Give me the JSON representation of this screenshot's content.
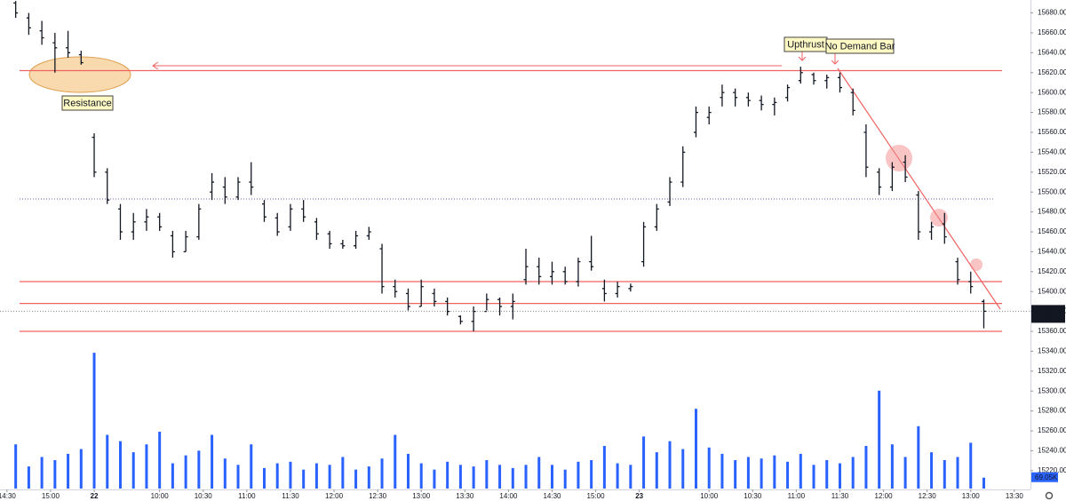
{
  "chart_data": {
    "type": "ohlc",
    "x": [
      2,
      5,
      8,
      11,
      14,
      17,
      20,
      23,
      26,
      29,
      32,
      35,
      38,
      41,
      44,
      47,
      50,
      53,
      56,
      59,
      62,
      65,
      68,
      71,
      74,
      77,
      80,
      83,
      86,
      89,
      92,
      95,
      98,
      101,
      104,
      107,
      110,
      113,
      116,
      119,
      122,
      125,
      128,
      131,
      134,
      137,
      140,
      143,
      146,
      149,
      152,
      155,
      158,
      161,
      164,
      167,
      170,
      173,
      176,
      179,
      182,
      185,
      188,
      191,
      194,
      197,
      200,
      203,
      206,
      209,
      212,
      215,
      218,
      221,
      224
    ],
    "open": [
      15690,
      15675,
      15662,
      15650,
      15645,
      15638,
      15555,
      15520,
      15483,
      15460,
      15470,
      15475,
      15456,
      15440,
      15455,
      15500,
      15505,
      15495,
      15510,
      15488,
      15474,
      15465,
      15483,
      15470,
      15458,
      15448,
      15446,
      15456,
      15443,
      15405,
      15398,
      15385,
      15398,
      15390,
      15375,
      15370,
      15380,
      15392,
      15385,
      15412,
      15425,
      15415,
      15420,
      15410,
      15430,
      15403,
      15398,
      15403,
      15430,
      15465,
      15490,
      15510,
      15560,
      15575,
      15595,
      15600,
      15595,
      15592,
      15588,
      15595,
      15612,
      15618,
      15612,
      15615,
      15600,
      15560,
      15520,
      15505,
      15530,
      15497,
      15460,
      15468,
      15430,
      15410,
      15390
    ],
    "high": [
      15692,
      15680,
      15672,
      15660,
      15662,
      15642,
      15559,
      15524,
      15488,
      15479,
      15483,
      15479,
      15461,
      15461,
      15488,
      15519,
      15515,
      15515,
      15530,
      15492,
      15479,
      15488,
      15492,
      15474,
      15461,
      15452,
      15461,
      15465,
      15448,
      15412,
      15403,
      15412,
      15403,
      15394,
      15376,
      15385,
      15398,
      15394,
      15398,
      15443,
      15434,
      15430,
      15425,
      15434,
      15456,
      15412,
      15410,
      15408,
      15470,
      15488,
      15515,
      15546,
      15586,
      15586,
      15608,
      15604,
      15600,
      15597,
      15595,
      15608,
      15626,
      15620,
      15618,
      15620,
      15604,
      15568,
      15524,
      15530,
      15537,
      15501,
      15470,
      15479,
      15434,
      15420,
      15392
    ],
    "low": [
      15675,
      15658,
      15648,
      15620,
      15635,
      15628,
      15515,
      15488,
      15452,
      15452,
      15461,
      15461,
      15434,
      15440,
      15452,
      15492,
      15488,
      15492,
      15497,
      15470,
      15456,
      15461,
      15470,
      15452,
      15443,
      15443,
      15443,
      15452,
      15398,
      15394,
      15381,
      15385,
      15385,
      15376,
      15367,
      15360,
      15381,
      15376,
      15372,
      15407,
      15407,
      15407,
      15407,
      15405,
      15421,
      15390,
      15394,
      15400,
      15425,
      15461,
      15486,
      15505,
      15555,
      15568,
      15586,
      15586,
      15586,
      15582,
      15577,
      15591,
      15609,
      15608,
      15604,
      15600,
      15577,
      15515,
      15497,
      15501,
      15510,
      15452,
      15452,
      15448,
      15407,
      15398,
      15363
    ],
    "close": [
      15680,
      15665,
      15655,
      15645,
      15640,
      15630,
      15520,
      15492,
      15460,
      15470,
      15475,
      15465,
      15440,
      15455,
      15483,
      15510,
      15495,
      15510,
      15505,
      15475,
      15460,
      15483,
      15475,
      15458,
      15448,
      15446,
      15456,
      15460,
      15405,
      15400,
      15385,
      15405,
      15390,
      15380,
      15370,
      15380,
      15392,
      15385,
      15390,
      15425,
      15415,
      15420,
      15410,
      15430,
      15425,
      15398,
      15405,
      15405,
      15465,
      15483,
      15510,
      15540,
      15580,
      15580,
      15600,
      15595,
      15592,
      15588,
      15590,
      15605,
      15620,
      15612,
      15615,
      15605,
      15582,
      15525,
      15505,
      15525,
      15515,
      15460,
      15465,
      15455,
      15412,
      15405,
      15380.2
    ],
    "volume": [
      280,
      140,
      200,
      180,
      220,
      250,
      860,
      340,
      300,
      230,
      280,
      360,
      160,
      210,
      240,
      340,
      190,
      150,
      280,
      130,
      160,
      170,
      120,
      160,
      150,
      200,
      120,
      140,
      190,
      340,
      220,
      160,
      120,
      170,
      150,
      140,
      180,
      150,
      130,
      150,
      200,
      150,
      120,
      170,
      180,
      270,
      160,
      150,
      330,
      230,
      300,
      250,
      505,
      260,
      220,
      180,
      200,
      190,
      210,
      170,
      220,
      150,
      180,
      160,
      200,
      270,
      620,
      280,
      200,
      395,
      230,
      180,
      200,
      290,
      69.05
    ],
    "bar_color": "#131722",
    "volume_color": "#2962ff",
    "level_color": "#f06262",
    "dotted_level_color": "#7e57c2",
    "xlim": [
      -1.6,
      234.7
    ],
    "ylim": [
      15202,
      15693
    ],
    "volume_lim": [
      0,
      900
    ],
    "yticks": [
      {
        "value": 15220,
        "label": "15220.00"
      },
      {
        "value": 15240,
        "label": "15240.00"
      },
      {
        "value": 15260,
        "label": "15260.00"
      },
      {
        "value": 15280,
        "label": "15280.00"
      },
      {
        "value": 15300,
        "label": "15300.00"
      },
      {
        "value": 15320,
        "label": "15320.00"
      },
      {
        "value": 15340,
        "label": "15340.00"
      },
      {
        "value": 15360,
        "label": "15360.00"
      },
      {
        "value": 15380,
        "label": "15380.00"
      },
      {
        "value": 15400,
        "label": "15400.00"
      },
      {
        "value": 15420,
        "label": "15420.00"
      },
      {
        "value": 15440,
        "label": "15440.00"
      },
      {
        "value": 15460,
        "label": "15460.00"
      },
      {
        "value": 15480,
        "label": "15480.00"
      },
      {
        "value": 15500,
        "label": "15500.00"
      },
      {
        "value": 15520,
        "label": "15520.00"
      },
      {
        "value": 15540,
        "label": "15540.00"
      },
      {
        "value": 15560,
        "label": "15560.00"
      },
      {
        "value": 15580,
        "label": "15580.00"
      },
      {
        "value": 15600,
        "label": "15600.00"
      },
      {
        "value": 15620,
        "label": "15620.00"
      },
      {
        "value": 15640,
        "label": "15640.00"
      },
      {
        "value": 15660,
        "label": "15660.00"
      },
      {
        "value": 15680,
        "label": "15680.00"
      }
    ],
    "xticks": [
      {
        "value": 0,
        "label": "14:30"
      },
      {
        "value": 10,
        "label": "15:00"
      },
      {
        "value": 20,
        "label": "22"
      },
      {
        "value": 35,
        "label": "10:00"
      },
      {
        "value": 45,
        "label": "10:30"
      },
      {
        "value": 55,
        "label": "11:00"
      },
      {
        "value": 65,
        "label": "11:30"
      },
      {
        "value": 75,
        "label": "12:00"
      },
      {
        "value": 85,
        "label": "12:30"
      },
      {
        "value": 95,
        "label": "13:00"
      },
      {
        "value": 105,
        "label": "13:30"
      },
      {
        "value": 115,
        "label": "14:00"
      },
      {
        "value": 125,
        "label": "14:30"
      },
      {
        "value": 135,
        "label": "15:00"
      },
      {
        "value": 145,
        "label": "23"
      },
      {
        "value": 161,
        "label": "10:00"
      },
      {
        "value": 171,
        "label": "10:30"
      },
      {
        "value": 181,
        "label": "11:00"
      },
      {
        "value": 191,
        "label": "11:30"
      },
      {
        "value": 201,
        "label": "12:00"
      },
      {
        "value": 211,
        "label": "12:30"
      },
      {
        "value": 221,
        "label": "13:00"
      },
      {
        "value": 231,
        "label": "13:30"
      }
    ],
    "levels": [
      15622,
      15410,
      15388,
      15360
    ],
    "dotted_level": 15493,
    "last_price": {
      "value": 15380.2,
      "label": "15380.20"
    },
    "countdown": "02:01",
    "volume_label": "69.05K",
    "annotations": {
      "resistance": "Resistance",
      "upthrust": "Upthrust",
      "no_demand": "No Demand Bar"
    }
  }
}
